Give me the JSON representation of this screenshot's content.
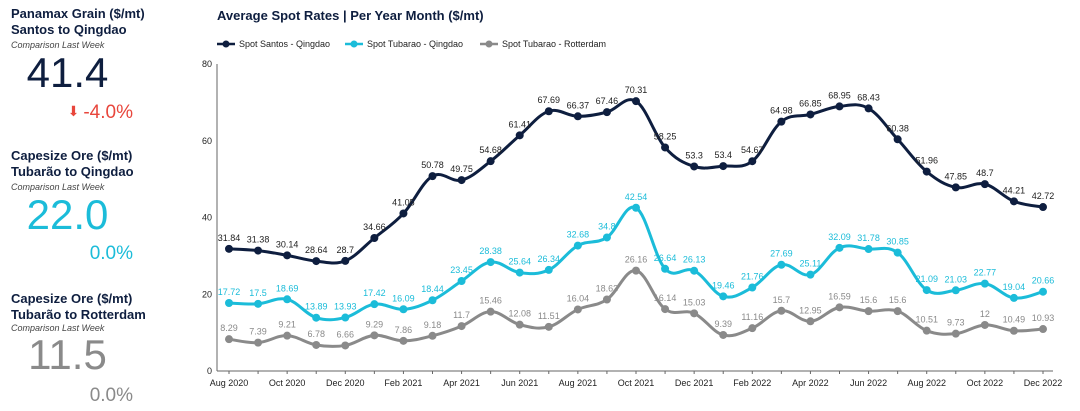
{
  "kpis": [
    {
      "title_line1": "Panamax Grain ($/mt)",
      "title_line2": "Santos to Qingdao",
      "subtitle": "Comparison Last Week",
      "value": "41.4",
      "change": "-4.0%",
      "value_color": "#0e1e3f",
      "change_color": "#e8463c",
      "arrow_icon": "arrow-down-icon"
    },
    {
      "title_line1": "Capesize Ore ($/mt)",
      "title_line2": "Tubarão to Qingdao",
      "subtitle": "Comparison Last Week",
      "value": "22.0",
      "change": "0.0%",
      "value_color": "#1bbcd9",
      "change_color": "#1bbcd9"
    },
    {
      "title_line1": "Capesize Ore ($/mt)",
      "title_line2": "Tubarão to Rotterdam",
      "subtitle": "Comparison Last Week",
      "value": "11.5",
      "change": "0.0%",
      "value_color": "#8a8a8a",
      "change_color": "#8a8a8a"
    }
  ],
  "chart_data": {
    "type": "line",
    "title": "Average Spot Rates | Per Year Month  ($/mt)",
    "legend_position": "top-left",
    "ylim": [
      0,
      80
    ],
    "yticks": [
      0,
      20,
      40,
      60,
      80
    ],
    "x_tick_labels": [
      "Aug 2020",
      "",
      "Oct 2020",
      "",
      "Dec 2020",
      "",
      "Feb 2021",
      "",
      "Apr 2021",
      "",
      "Jun 2021",
      "",
      "Aug 2021",
      "",
      "Oct 2021",
      "",
      "Dec 2021",
      "",
      "Feb 2022",
      "",
      "Apr 2022",
      "",
      "Jun 2022",
      "",
      "Aug 2022",
      "",
      "Oct 2022",
      "",
      "Dec 2022"
    ],
    "grid": false,
    "series": [
      {
        "name": "Spot Santos - Qingdao",
        "color": "#0e1e3f",
        "values": [
          31.84,
          31.38,
          30.14,
          28.64,
          28.7,
          34.66,
          41.05,
          50.78,
          49.75,
          54.68,
          61.41,
          67.69,
          66.37,
          67.46,
          70.31,
          58.25,
          53.3,
          53.4,
          54.67,
          64.98,
          66.85,
          68.95,
          68.43,
          60.38,
          51.96,
          47.85,
          48.7,
          44.21,
          42.72
        ],
        "labels": [
          "31.84",
          "31.38",
          "30.14",
          "28.64",
          "28.7",
          "34.66",
          "41.05",
          "50.78",
          "49.75",
          "54.68",
          "61.41",
          "67.69",
          "66.37",
          "67.46",
          "70.31",
          "58.25",
          "53.3",
          "53.4",
          "54.67",
          "64.98",
          "66.85",
          "68.95",
          "68.43",
          "60.38",
          "51.96",
          "47.85",
          "48.7",
          "44.21",
          "42.72"
        ]
      },
      {
        "name": "Spot Tubarao - Qingdao",
        "color": "#1bbcd9",
        "values": [
          17.72,
          17.5,
          18.69,
          13.89,
          13.93,
          17.42,
          16.09,
          18.44,
          23.45,
          28.38,
          25.64,
          26.34,
          32.68,
          34.8,
          42.54,
          26.64,
          26.13,
          19.46,
          21.76,
          27.69,
          25.11,
          32.09,
          31.78,
          30.85,
          21.09,
          21.03,
          22.77,
          19.04,
          20.66
        ],
        "labels": [
          "17.72",
          "17.5",
          "18.69",
          "13.89",
          "13.93",
          "17.42",
          "16.09",
          "18.44",
          "23.45",
          "28.38",
          "25.64",
          "26.34",
          "32.68",
          "34.8",
          "42.54",
          "26.64",
          "26.13",
          "19.46",
          "21.76",
          "27.69",
          "25.11",
          "32.09",
          "31.78",
          "30.85",
          "21.09",
          "21.03",
          "22.77",
          "19.04",
          "20.66"
        ]
      },
      {
        "name": "Spot Tubarao - Rotterdam",
        "color": "#8a8a8a",
        "values": [
          8.29,
          7.39,
          9.21,
          6.78,
          6.66,
          9.29,
          7.86,
          9.18,
          11.7,
          15.46,
          12.08,
          11.51,
          16.04,
          18.63,
          26.16,
          16.14,
          15.03,
          9.39,
          11.16,
          15.7,
          12.95,
          16.59,
          15.6,
          15.6,
          10.51,
          9.73,
          12,
          10.49,
          10.93
        ],
        "labels": [
          "8.29",
          "7.39",
          "9.21",
          "6.78",
          "6.66",
          "9.29",
          "7.86",
          "9.18",
          "11.7",
          "15.46",
          "12.08",
          "11.51",
          "16.04",
          "18.63",
          "26.16",
          "16.14",
          "15.03",
          "9.39",
          "11.16",
          "15.7",
          "12.95",
          "16.59",
          "15.6",
          "15.6",
          "10.51",
          "9.73",
          "12",
          "10.49",
          "10.93"
        ]
      }
    ]
  }
}
